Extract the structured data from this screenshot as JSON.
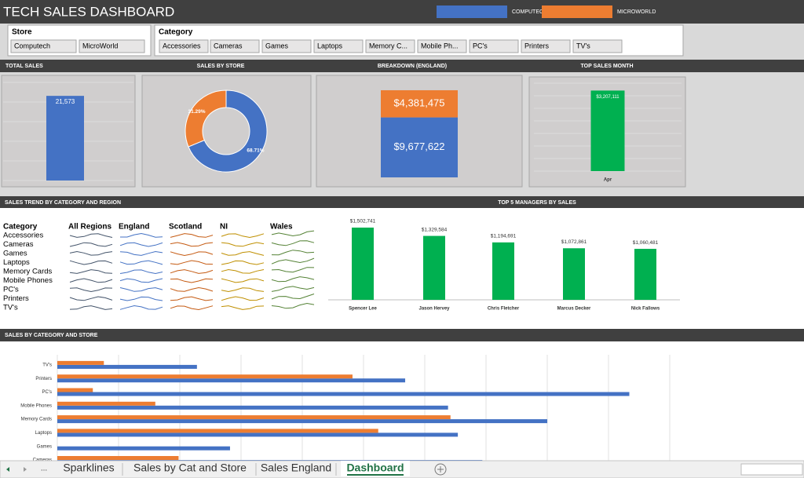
{
  "header": {
    "title": "TECH SALES DASHBOARD"
  },
  "slicers": [
    {
      "title": "Store",
      "items": [
        "Computech",
        "MicroWorld"
      ]
    },
    {
      "title": "Category",
      "items": [
        "Accessories",
        "Cameras",
        "Games",
        "Laptops",
        "Memory C...",
        "Mobile Ph...",
        "PC's",
        "Printers",
        "TV's"
      ]
    }
  ],
  "sparklines": {
    "title": "SALES TREND BY CATEGORY AND REGION",
    "header": "Category",
    "regions": [
      "All Regions",
      "England",
      "Scotland",
      "NI",
      "Wales"
    ],
    "categories": [
      "Accessories",
      "Cameras",
      "Games",
      "Laptops",
      "Memory Cards",
      "Mobile Phones",
      "PC's",
      "Printers",
      "TV's"
    ]
  },
  "tabs": {
    "items": [
      "...",
      "Sparklines",
      "Sales by Cat and Store",
      "Sales England",
      "Dashboard"
    ],
    "active": 4
  },
  "chart_data": [
    {
      "type": "bar",
      "title": "TOTAL SALES",
      "categories": [
        null
      ],
      "values": [
        21573
      ],
      "value_labels": [
        "21,573"
      ],
      "color": "#4472c4",
      "ylim": [
        0,
        25000
      ],
      "yticks": [
        0,
        5000,
        10000,
        15000,
        20000,
        25000
      ],
      "grid": true
    },
    {
      "type": "pie",
      "title": "SALES BY STORE",
      "donut": true,
      "values": [
        68.71,
        31.29
      ],
      "value_labels": [
        "68.71%",
        "31.29%"
      ],
      "colors": [
        "#4472c4",
        "#ed7d31"
      ]
    },
    {
      "type": "stacked_bar",
      "title": "BREAKDOWN (ENGLAND)",
      "values": [
        9677622,
        4381475
      ],
      "value_labels": [
        "$9,677,622",
        "$4,381,475"
      ],
      "colors": [
        "#4472c4",
        "#ed7d31"
      ],
      "ylim": [
        0,
        14500000
      ]
    },
    {
      "type": "bar",
      "title": "TOP SALES MONTH",
      "categories": [
        "Apr"
      ],
      "values": [
        3207111
      ],
      "value_labels": [
        "$3,207,111"
      ],
      "color": "#00b050",
      "ylim": [
        0,
        3500000
      ],
      "yticks": [
        0,
        500000,
        1000000,
        1500000,
        2000000,
        2500000,
        3000000,
        3500000
      ],
      "grid": true
    },
    {
      "type": "bar",
      "title": "TOP  5 MANAGERS BY SALES",
      "categories": [
        "Spencer Lee",
        "Jason Hervey",
        "Chris Fletcher",
        "Marcus Decker",
        "Nick Fallows"
      ],
      "values": [
        1502741,
        1329584,
        1194691,
        1072861,
        1060481
      ],
      "value_labels": [
        "$1,502,741",
        "$1,329,584",
        "$1,194,691",
        "$1,072,861",
        "$1,060,481"
      ],
      "color": "#00b050",
      "ylim": [
        0,
        1600000
      ]
    },
    {
      "type": "hbar",
      "title": "SALES  BY CATEGORY AND STORE",
      "categories": [
        "Cameras",
        "Games",
        "Laptops",
        "Memory Cards",
        "Mobile Phones",
        "PC's",
        "Printers",
        "TV's"
      ],
      "series": [
        {
          "name": "COMPUTECH",
          "color": "#4472c4",
          "values": [
            3470000,
            1410000,
            3270000,
            4000000,
            3190000,
            4670000,
            2840000,
            1140000
          ]
        },
        {
          "name": "MICROWORLD",
          "color": "#ed7d31",
          "values": [
            990000,
            0,
            2620000,
            3210000,
            800000,
            290000,
            2410000,
            380000
          ]
        }
      ],
      "xlim": [
        0,
        5000000
      ],
      "xticks": [
        0,
        500000,
        1000000,
        1500000,
        2000000,
        2500000,
        3000000,
        3500000,
        4000000,
        4500000,
        5000000
      ],
      "grid": true
    }
  ]
}
